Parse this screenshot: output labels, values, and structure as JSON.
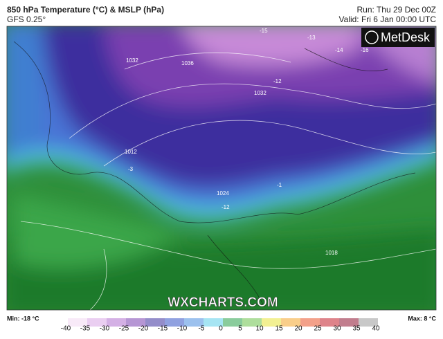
{
  "header": {
    "title": "850 hPa Temperature (°C) & MSLP (hPa)",
    "model": "GFS 0.25°",
    "run": "Run: Thu 29 Dec 00Z",
    "valid": "Valid: Fri 6 Jan 00:00 UTC"
  },
  "map": {
    "brand": "MetDesk",
    "watermark": "WXCHARTS.COM",
    "labels": [
      "1032",
      "1036",
      "1032",
      "-12",
      "-12",
      "-15",
      "-13",
      "-16",
      "-14",
      "1018",
      "1012",
      "1024",
      "-1",
      "-3"
    ]
  },
  "footer": {
    "min": "Min: -18 °C",
    "max": "Max: 8 °C"
  },
  "colorbar": {
    "ticks": [
      -40,
      -35,
      -30,
      -25,
      -20,
      -15,
      -10,
      -5,
      0,
      5,
      10,
      15,
      20,
      25,
      30,
      35,
      40
    ]
  }
}
